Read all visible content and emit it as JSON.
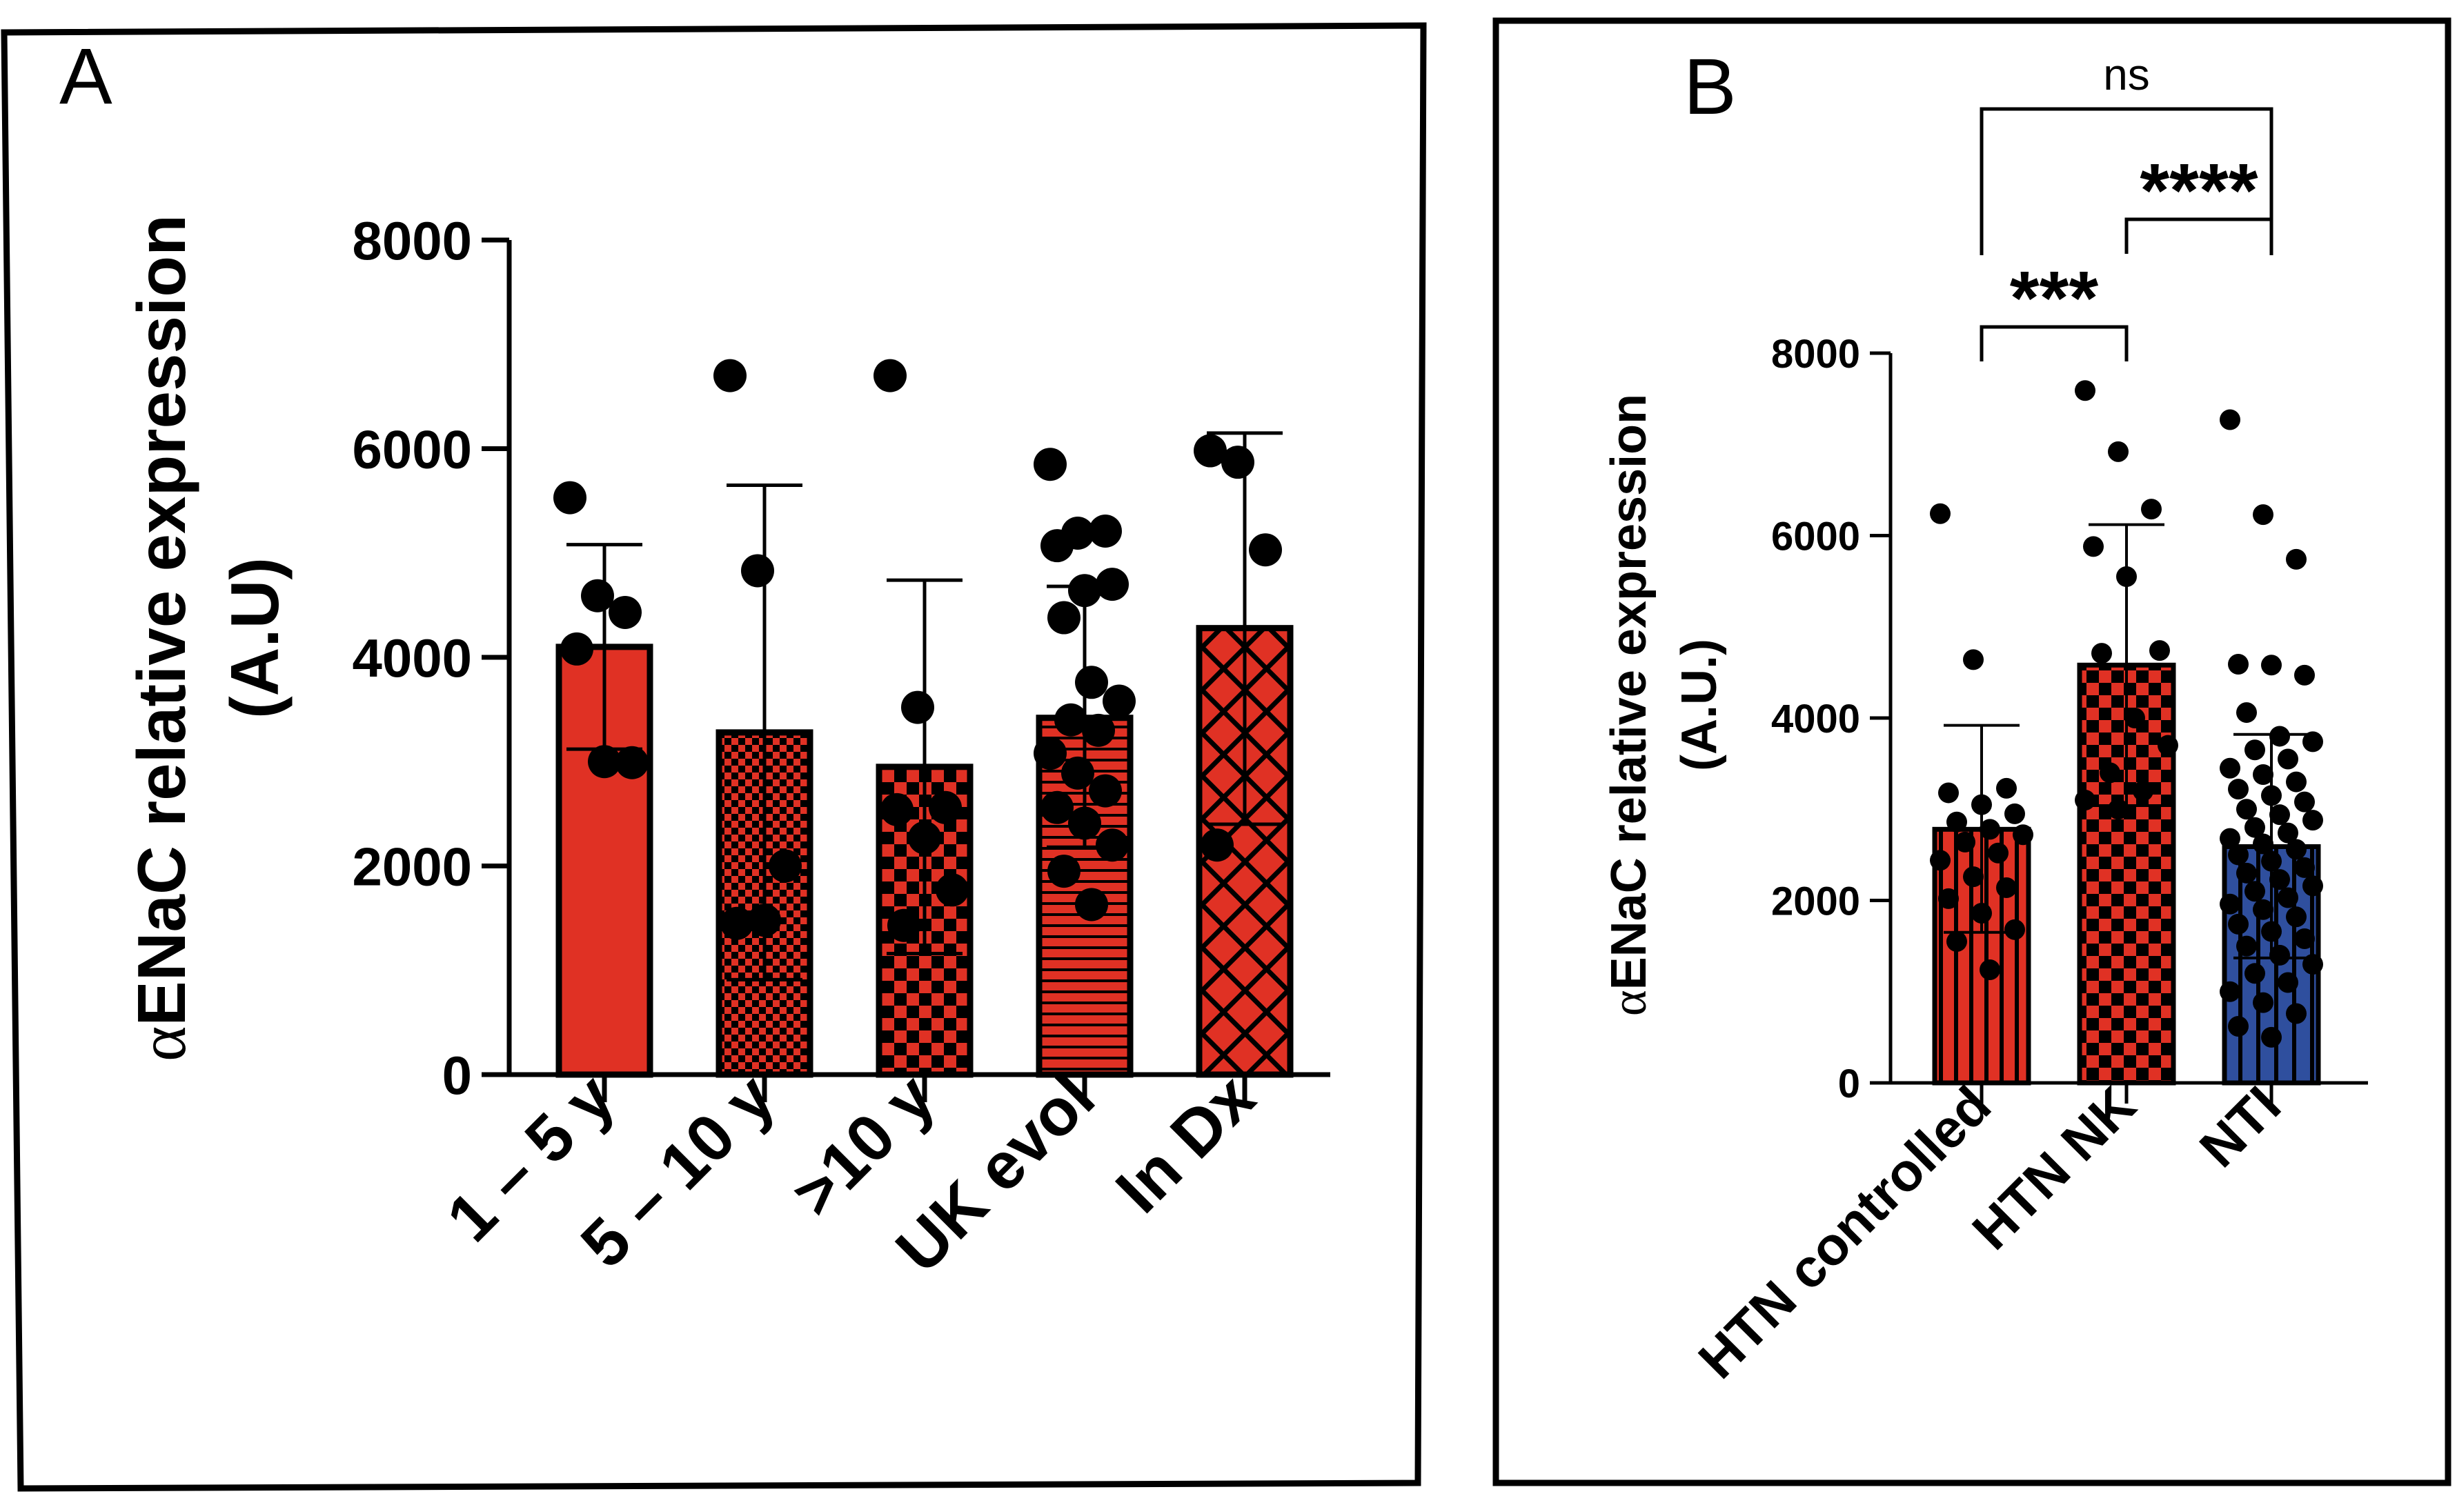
{
  "colors": {
    "red": "#e03124",
    "blue": "#2f4f9e",
    "black": "#000000",
    "white": "#ffffff"
  },
  "chart_data": [
    {
      "panel": "A",
      "type": "bar",
      "ylabel": "αENaC relative expression",
      "ylabel_unit": "(A.U)",
      "ylim": [
        0,
        8000
      ],
      "yticks": [
        "0",
        "2000",
        "4000",
        "6000",
        "8000"
      ],
      "categories": [
        "1 – 5 y",
        "5 – 10 y",
        ">10 y",
        "UK evol",
        "In Dx"
      ],
      "patterns": [
        "solid",
        "fine-checker",
        "checker",
        "horizontal-lines",
        "crosshatch"
      ],
      "values": [
        4100,
        3280,
        2950,
        3420,
        4280
      ],
      "error_upper": [
        5080,
        5650,
        4740,
        4680,
        6150
      ],
      "error_lower": [
        3120,
        910,
        1160,
        2180,
        2400
      ],
      "points": [
        [
          5530,
          4590,
          4430,
          4080,
          3000,
          2990
        ],
        [
          6700,
          4830,
          2000,
          1450,
          1480
        ],
        [
          6700,
          3520,
          2560,
          2540,
          2270,
          1770,
          1430
        ],
        [
          5850,
          5190,
          5210,
          5070,
          4640,
          4700,
          4380,
          3760,
          3580,
          3400,
          3300,
          3080,
          2890,
          2720,
          2560,
          2410,
          2200,
          1950,
          1630
        ],
        [
          5980,
          5870,
          5030,
          2200
        ]
      ],
      "grid": false,
      "legend": "none"
    },
    {
      "panel": "B",
      "type": "bar",
      "ylabel": "αENaC relative expression",
      "ylabel_unit": "(A.U.)",
      "ylim": [
        0,
        8000
      ],
      "yticks": [
        "0",
        "2000",
        "4000",
        "6000",
        "8000"
      ],
      "categories": [
        "HTN controlled",
        "HTN NK",
        "NTI"
      ],
      "patterns": [
        "vertical-lines",
        "checker",
        "vertical-lines-blue"
      ],
      "values": [
        2780,
        4580,
        2590
      ],
      "error_upper": [
        3920,
        6120,
        3820
      ],
      "error_lower": [
        1650,
        3040,
        1370
      ],
      "points": [
        [
          6240,
          4640,
          3230,
          3180,
          3050,
          2950,
          2860,
          2780,
          2720,
          2640,
          2520,
          2440,
          2260,
          2140,
          2020,
          1860,
          1680,
          1550,
          1240
        ],
        [
          7590,
          6920,
          6290,
          5880,
          5550,
          4740,
          4710,
          4000,
          3700,
          3400,
          3200,
          3100,
          3000
        ],
        [
          7270,
          6230,
          5740,
          4590,
          4580,
          4470,
          4060,
          3800,
          3740,
          3650,
          3550,
          3450,
          3380,
          3300,
          3220,
          3150,
          3080,
          3000,
          2940,
          2880,
          2800,
          2740,
          2680,
          2620,
          2560,
          2500,
          2430,
          2360,
          2300,
          2230,
          2160,
          2100,
          2030,
          1960,
          1900,
          1820,
          1740,
          1660,
          1580,
          1500,
          1400,
          1300,
          1200,
          1100,
          1000,
          880,
          760,
          620,
          500
        ]
      ],
      "significance": [
        {
          "from": 0,
          "to": 2,
          "label": "ns"
        },
        {
          "from": 1,
          "to": 2,
          "label": "****"
        },
        {
          "from": 0,
          "to": 1,
          "label": "***"
        }
      ],
      "grid": false,
      "legend": "none"
    }
  ],
  "panels": {
    "a_label": "A",
    "b_label": "B"
  }
}
